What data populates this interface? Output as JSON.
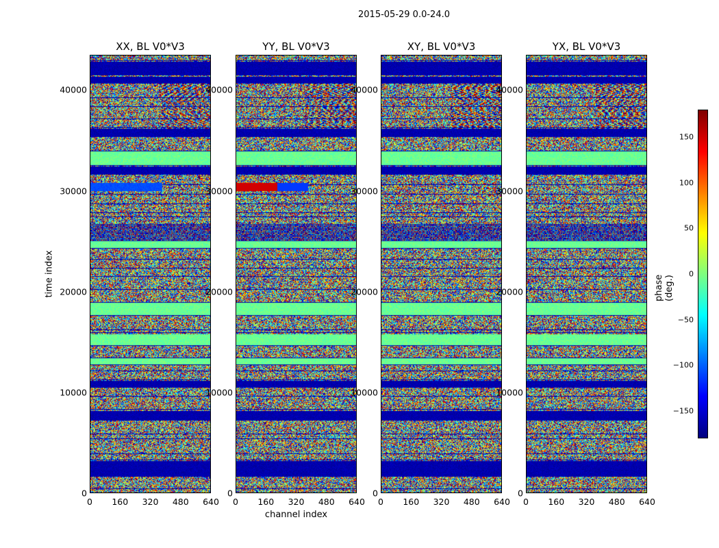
{
  "suptitle": "2015-05-29 0.0-24.0",
  "colorbar": {
    "label": "phase (deg.)",
    "ticks": [
      150,
      100,
      50,
      0,
      -50,
      -100,
      -150
    ],
    "tick_labels": [
      "150",
      "100",
      "50",
      "0",
      "−50",
      "−100",
      "−150"
    ],
    "range": [
      -180,
      180
    ],
    "colormap": "jet"
  },
  "chart_data": [
    {
      "type": "heatmap",
      "title": "XX, BL V0*V3",
      "xlabel": "",
      "ylabel": "time index",
      "xlim": [
        0,
        640
      ],
      "ylim": [
        0,
        43500
      ],
      "x_ticks": [
        0,
        160,
        320,
        480,
        640
      ],
      "y_ticks": [
        0,
        10000,
        20000,
        30000,
        40000
      ],
      "value": "phase (deg.)"
    },
    {
      "type": "heatmap",
      "title": "YY, BL V0*V3",
      "xlabel": "channel index",
      "ylabel": "",
      "xlim": [
        0,
        640
      ],
      "ylim": [
        0,
        43500
      ],
      "x_ticks": [
        0,
        160,
        320,
        480,
        640
      ],
      "y_ticks": [
        0,
        10000,
        20000,
        30000,
        40000
      ],
      "value": "phase (deg.)"
    },
    {
      "type": "heatmap",
      "title": "XY, BL V0*V3",
      "xlabel": "",
      "ylabel": "",
      "xlim": [
        0,
        640
      ],
      "ylim": [
        0,
        43500
      ],
      "x_ticks": [
        0,
        160,
        320,
        480,
        640
      ],
      "y_ticks": [
        0,
        10000,
        20000,
        30000,
        40000
      ],
      "value": "phase (deg.)"
    },
    {
      "type": "heatmap",
      "title": "YX, BL V0*V3",
      "xlabel": "",
      "ylabel": "",
      "xlim": [
        0,
        640
      ],
      "ylim": [
        0,
        43500
      ],
      "x_ticks": [
        0,
        160,
        320,
        480,
        640
      ],
      "y_ticks": [
        0,
        10000,
        20000,
        30000,
        40000
      ],
      "value": "phase (deg.)"
    }
  ]
}
